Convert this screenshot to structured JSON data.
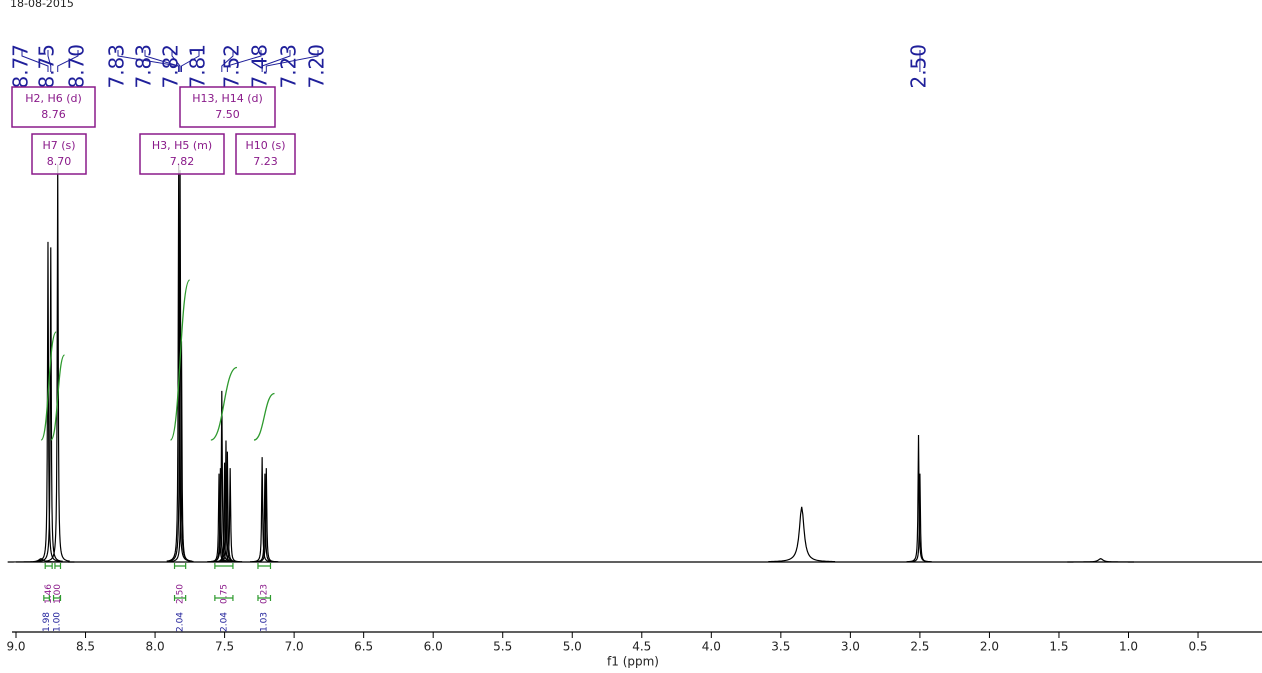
{
  "chart_data": {
    "type": "nmr",
    "date": "18-08-2015",
    "x_label": "f1 (ppm)",
    "xlim": [
      9.0,
      0.04
    ],
    "ylim": [
      0,
      100
    ],
    "xticks": [
      {
        "value": 9,
        "label": "9.0"
      },
      8.5,
      {
        "value": 8,
        "label": "8.0"
      },
      7.5,
      {
        "value": 7,
        "label": "7.0"
      },
      6.5,
      {
        "value": 6,
        "label": "6.0"
      },
      5.5,
      {
        "value": 5,
        "label": "5.0"
      },
      4.5,
      {
        "value": 4,
        "label": "4.0"
      },
      3.5,
      {
        "value": 3,
        "label": "3.0"
      },
      2.5,
      {
        "value": 2,
        "label": "2.0"
      },
      1.5,
      {
        "value": 1,
        "label": "1.0"
      },
      0.5
    ],
    "color": "#000000",
    "peak_pick_color": "#1f1f9a",
    "annotation_color": "#8a1a8a",
    "integral_color": "#2e9a2e",
    "peak_picks": [
      {
        "value": 8.77,
        "label": "8.77"
      },
      {
        "value": 8.75,
        "label": "8.75"
      },
      {
        "value": 8.7,
        "label": "8.70"
      },
      {
        "value": 7.83,
        "label": "7.83"
      },
      {
        "value": 7.83,
        "label": "7.83"
      },
      {
        "value": 7.82,
        "label": "7.82"
      },
      {
        "value": 7.81,
        "label": "7.81"
      },
      {
        "value": 7.52,
        "label": "7.52"
      },
      {
        "value": 7.48,
        "label": "7.48"
      },
      {
        "value": 7.23,
        "label": "7.23"
      },
      {
        "value": 7.2,
        "label": "7.20"
      },
      {
        "value": 2.5,
        "label": "2.50"
      }
    ],
    "multiplets": [
      {
        "name": "H2, H6 (d)",
        "shift": {
          "value": 8.76,
          "label": "8.76"
        }
      },
      {
        "name": "H7 (s)",
        "shift": {
          "value": 8.7,
          "label": "8.70"
        }
      },
      {
        "name": "H13, H14 (d)",
        "shift": {
          "value": 7.5,
          "label": "7.50"
        }
      },
      {
        "name": "H3, H5 (m)",
        "shift": {
          "value": 7.82,
          "label": "7.82"
        }
      },
      {
        "name": "H10 (s)",
        "shift": {
          "value": 7.23,
          "label": "7.23"
        }
      }
    ],
    "integrals": [
      {
        "range": [
          8.79,
          8.74
        ],
        "value": 1.46,
        "row": 1
      },
      {
        "range": [
          8.72,
          8.68
        ],
        "value": {
          "value": 1,
          "label": "1.00"
        },
        "row": 1
      },
      {
        "range": [
          7.86,
          7.78
        ],
        "value": {
          "value": 2.5,
          "label": "2.50"
        },
        "row": 1
      },
      {
        "range": [
          7.57,
          7.44
        ],
        "value": 0.75,
        "row": 1
      },
      {
        "range": [
          7.26,
          7.17
        ],
        "value": 0.23,
        "row": 1
      },
      {
        "range": [
          8.8,
          8.76
        ],
        "value": 1.98,
        "row": 2
      },
      {
        "range": [
          8.73,
          8.68
        ],
        "value": {
          "value": 1,
          "label": "1.00"
        },
        "row": 2
      },
      {
        "range": [
          7.86,
          7.78
        ],
        "value": 2.04,
        "row": 2
      },
      {
        "range": [
          7.57,
          7.44
        ],
        "value": 2.04,
        "row": 2
      },
      {
        "range": [
          7.26,
          7.17
        ],
        "value": 1.03,
        "row": 2
      }
    ],
    "peaks": [
      {
        "ppm": 8.82,
        "height": 0.6,
        "width": 0.02
      },
      {
        "ppm": 8.77,
        "height": 58,
        "width": 0.004
      },
      {
        "ppm": 8.75,
        "height": 57,
        "width": 0.004
      },
      {
        "ppm": 8.7,
        "height": 72,
        "width": 0.004
      },
      {
        "ppm": 7.83,
        "height": 72,
        "width": 0.004
      },
      {
        "ppm": 7.82,
        "height": 71,
        "width": 0.004
      },
      {
        "ppm": 7.81,
        "height": 40,
        "width": 0.004
      },
      {
        "ppm": 7.54,
        "height": 16,
        "width": 0.004
      },
      {
        "ppm": 7.53,
        "height": 17,
        "width": 0.004
      },
      {
        "ppm": 7.52,
        "height": 31,
        "width": 0.004
      },
      {
        "ppm": 7.5,
        "height": 18,
        "width": 0.004
      },
      {
        "ppm": 7.49,
        "height": 22,
        "width": 0.004
      },
      {
        "ppm": 7.48,
        "height": 20,
        "width": 0.004
      },
      {
        "ppm": 7.46,
        "height": 17,
        "width": 0.004
      },
      {
        "ppm": 7.23,
        "height": 19,
        "width": 0.004
      },
      {
        "ppm": 7.21,
        "height": 16,
        "width": 0.004
      },
      {
        "ppm": 7.2,
        "height": 17,
        "width": 0.004
      },
      {
        "ppm": 3.35,
        "height": 10,
        "width": 0.02
      },
      {
        "ppm": 2.51,
        "height": 23,
        "width": 0.004
      },
      {
        "ppm": 2.5,
        "height": 16,
        "width": 0.004
      },
      {
        "ppm": 1.2,
        "height": 0.6,
        "width": 0.02
      }
    ]
  }
}
